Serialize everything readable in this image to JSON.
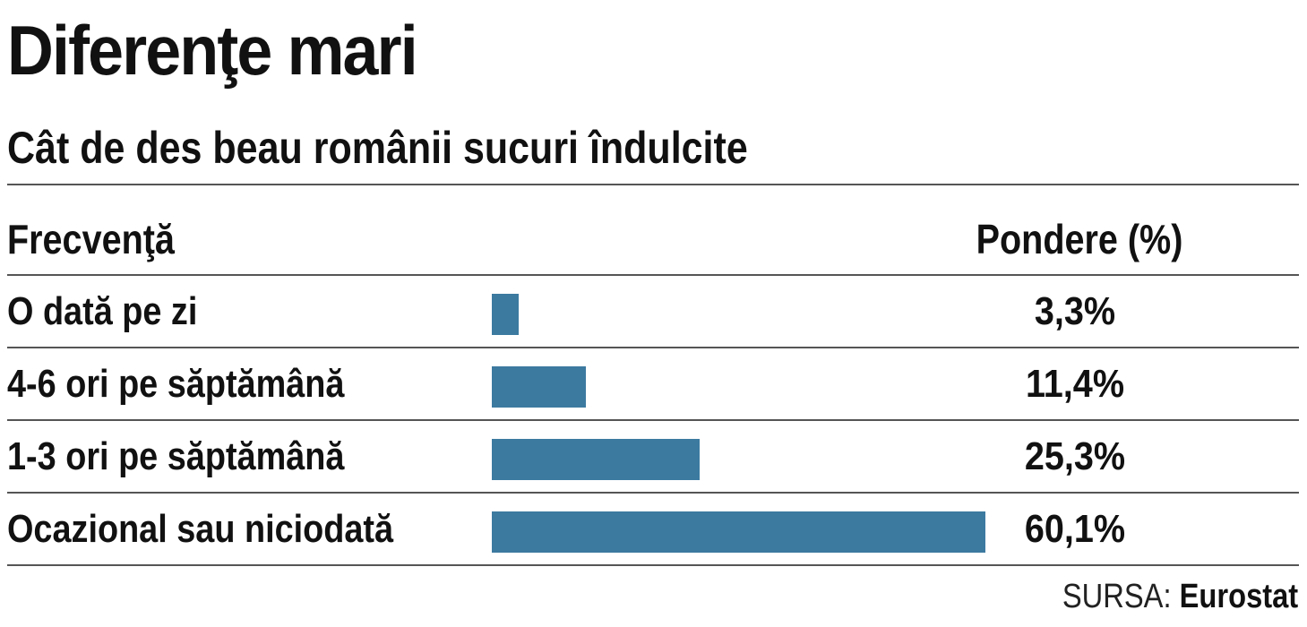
{
  "title": "Diferenţe mari",
  "subtitle": "Cât de des beau românii sucuri îndulcite",
  "columns": {
    "left": "Frecvenţă",
    "right": "Pondere (%)"
  },
  "source": {
    "prefix": "SURSA:",
    "name": "Eurostat"
  },
  "colors": {
    "bar": "#3c7aa0"
  },
  "chart_data": {
    "type": "bar",
    "orientation": "horizontal",
    "title": "Diferenţe mari",
    "subtitle": "Cât de des beau românii sucuri îndulcite",
    "xlabel": "Pondere (%)",
    "ylabel": "Frecvenţă",
    "categories": [
      "O dată pe zi",
      "4-6 ori pe săptămână",
      "1-3 ori pe săptămână",
      "Ocazional sau niciodată"
    ],
    "values": [
      3.3,
      11.4,
      25.3,
      60.1
    ],
    "value_labels": [
      "3,3%",
      "11,4%",
      "25,3%",
      "60,1%"
    ],
    "grid": false,
    "legend": "none"
  }
}
